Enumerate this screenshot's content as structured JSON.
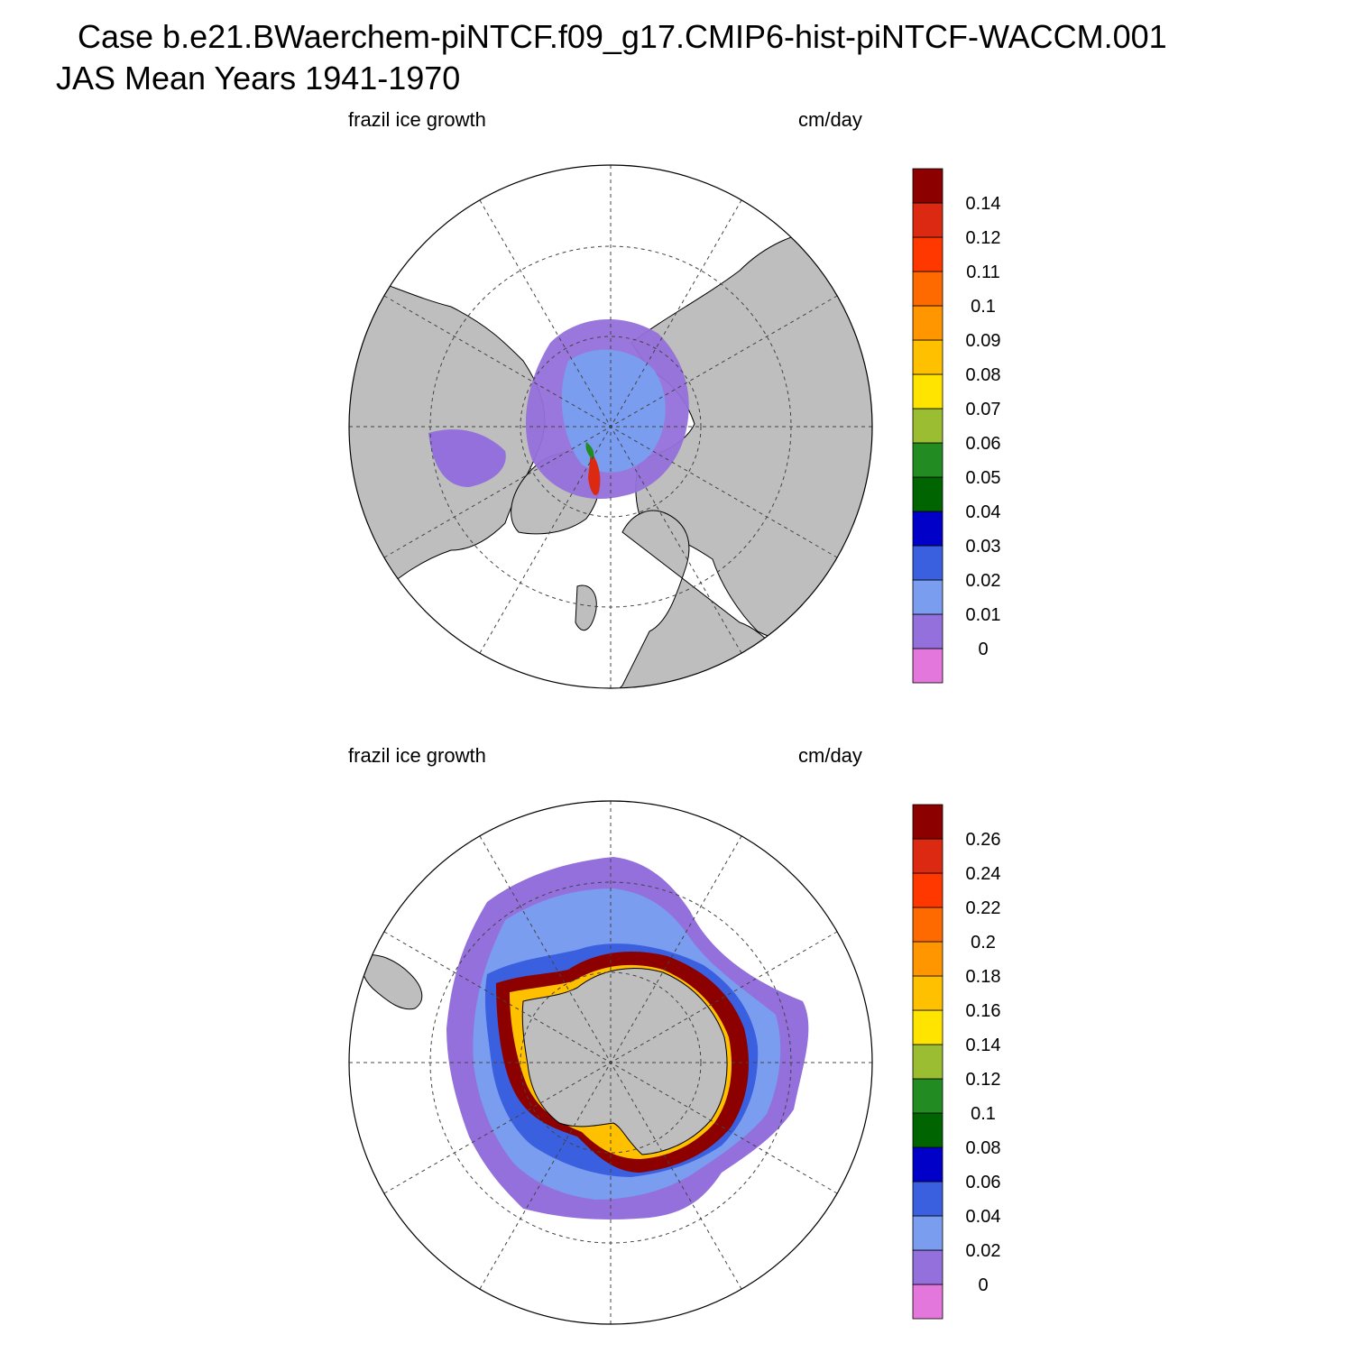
{
  "title_line1": "Case b.e21.BWaerchem-piNTCF.f09_g17.CMIP6-hist-piNTCF-WACCM.001",
  "title_line2": "JAS Mean   Years 1941-1970",
  "panels": [
    {
      "hemisphere": "north",
      "left_label": "frazil ice growth",
      "right_label": "cm/day",
      "colorbar": {
        "colors": [
          "#e477dc",
          "#9370db",
          "#7a9df0",
          "#3a60e0",
          "#0000c8",
          "#006400",
          "#228b22",
          "#9abd32",
          "#ffe400",
          "#ffc000",
          "#ff9600",
          "#ff6a00",
          "#ff3800",
          "#dc2a12",
          "#8c0000"
        ],
        "levels": [
          "0",
          "0.01",
          "0.02",
          "0.03",
          "0.04",
          "0.05",
          "0.06",
          "0.07",
          "0.08",
          "0.09",
          "0.1",
          "0.11",
          "0.12",
          "0.14"
        ]
      }
    },
    {
      "hemisphere": "south",
      "left_label": "frazil ice growth",
      "right_label": "cm/day",
      "colorbar": {
        "colors": [
          "#e477dc",
          "#9370db",
          "#7a9df0",
          "#3a60e0",
          "#0000c8",
          "#006400",
          "#228b22",
          "#9abd32",
          "#ffe400",
          "#ffc000",
          "#ff9600",
          "#ff6a00",
          "#ff3800",
          "#dc2a12",
          "#8c0000"
        ],
        "levels": [
          "0",
          "0.02",
          "0.04",
          "0.06",
          "0.08",
          "0.1",
          "0.12",
          "0.14",
          "0.16",
          "0.18",
          "0.2",
          "0.22",
          "0.24",
          "0.26"
        ]
      }
    }
  ],
  "colors": {
    "land": "#bebebe",
    "ocean": "#ffffff",
    "grid": "#444444"
  }
}
